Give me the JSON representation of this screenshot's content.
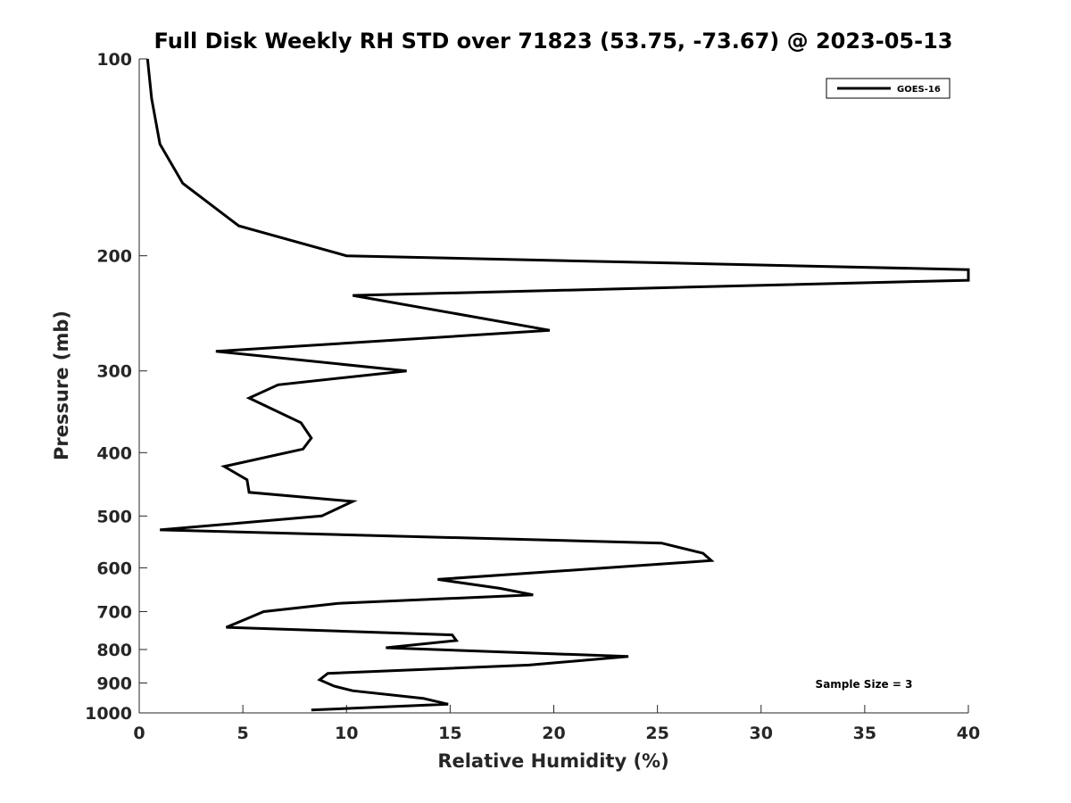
{
  "chart_data": {
    "type": "line",
    "title": "Full Disk Weekly RH STD over 71823 (53.75, -73.67) @ 2023-05-13",
    "xlabel": "Relative Humidity (%)",
    "ylabel": "Pressure (mb)",
    "xlim": [
      0,
      40
    ],
    "ylim": [
      100,
      1000
    ],
    "yscale": "log",
    "yreversed": true,
    "xticks": [
      0,
      5,
      10,
      15,
      20,
      25,
      30,
      35,
      40
    ],
    "yticks": [
      100,
      200,
      300,
      400,
      500,
      600,
      700,
      800,
      900,
      1000
    ],
    "grid": false,
    "legend_position": "top-right",
    "series": [
      {
        "name": "GOES-16",
        "color": "#000000",
        "points": [
          [
            0.4,
            100
          ],
          [
            0.6,
            115
          ],
          [
            1.0,
            135
          ],
          [
            2.1,
            155
          ],
          [
            4.8,
            180
          ],
          [
            10.0,
            200
          ],
          [
            40.0,
            210
          ],
          [
            40.0,
            218
          ],
          [
            10.3,
            230
          ],
          [
            19.8,
            260
          ],
          [
            3.7,
            280
          ],
          [
            12.9,
            300
          ],
          [
            6.7,
            315
          ],
          [
            5.3,
            330
          ],
          [
            7.8,
            360
          ],
          [
            8.3,
            380
          ],
          [
            7.9,
            395
          ],
          [
            4.1,
            420
          ],
          [
            5.2,
            440
          ],
          [
            5.3,
            460
          ],
          [
            10.3,
            475
          ],
          [
            8.8,
            500
          ],
          [
            1.0,
            525
          ],
          [
            25.2,
            550
          ],
          [
            27.2,
            570
          ],
          [
            27.6,
            585
          ],
          [
            14.4,
            625
          ],
          [
            17.4,
            645
          ],
          [
            19.0,
            660
          ],
          [
            9.6,
            680
          ],
          [
            6.0,
            700
          ],
          [
            5.1,
            720
          ],
          [
            4.2,
            740
          ],
          [
            15.1,
            760
          ],
          [
            15.3,
            775
          ],
          [
            11.9,
            795
          ],
          [
            23.6,
            820
          ],
          [
            18.8,
            845
          ],
          [
            9.1,
            870
          ],
          [
            8.7,
            890
          ],
          [
            9.4,
            910
          ],
          [
            10.3,
            925
          ],
          [
            13.7,
            950
          ],
          [
            14.9,
            970
          ],
          [
            8.3,
            990
          ]
        ]
      }
    ],
    "annotation": "Sample Size = 3"
  }
}
